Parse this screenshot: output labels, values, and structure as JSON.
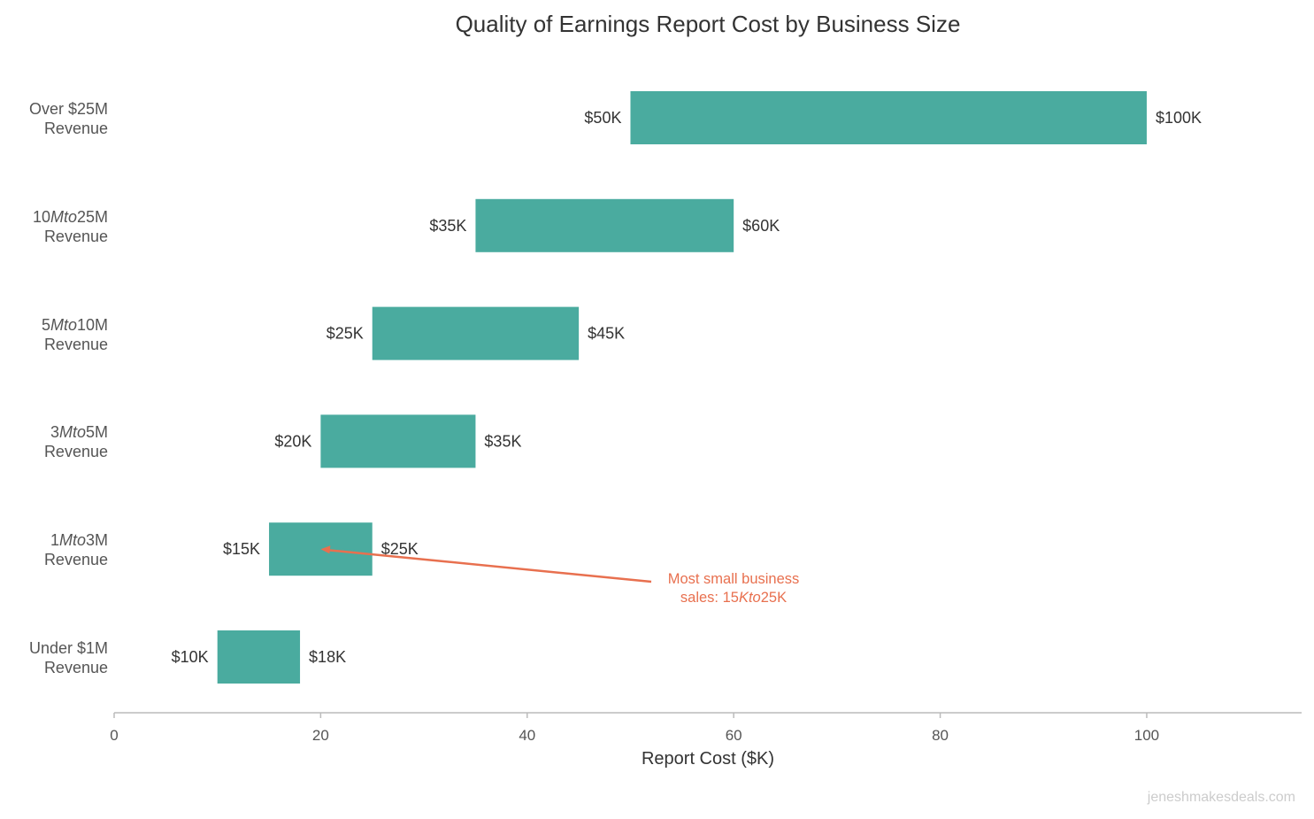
{
  "chart_data": {
    "type": "bar",
    "orientation": "horizontal-range",
    "title": "Quality of Earnings Report Cost by Business Size",
    "xlabel": "Report Cost ($K)",
    "ylabel": "",
    "xlim": [
      0,
      115
    ],
    "xticks": [
      0,
      20,
      40,
      60,
      80,
      100
    ],
    "grid": false,
    "categories": [
      {
        "label_parts": [
          "Under $1M",
          "",
          ""
        ],
        "line2": "Revenue"
      },
      {
        "label_parts": [
          "1",
          "Mto",
          "3M"
        ],
        "line2": "Revenue"
      },
      {
        "label_parts": [
          "3",
          "Mto",
          "5M"
        ],
        "line2": "Revenue"
      },
      {
        "label_parts": [
          "5",
          "Mto",
          "10M"
        ],
        "line2": "Revenue"
      },
      {
        "label_parts": [
          "10",
          "Mto",
          "25M"
        ],
        "line2": "Revenue"
      },
      {
        "label_parts": [
          "Over $25M",
          "",
          ""
        ],
        "line2": "Revenue"
      }
    ],
    "low": [
      10,
      15,
      20,
      25,
      35,
      50
    ],
    "high": [
      18,
      25,
      35,
      45,
      60,
      100
    ],
    "low_labels": [
      "$10K",
      "$15K",
      "$20K",
      "$25K",
      "$35K",
      "$50K"
    ],
    "high_labels": [
      "$18K",
      "$25K",
      "$35K",
      "$45K",
      "$60K",
      "$100K"
    ],
    "bar_color": "#4aab9f",
    "annotation": {
      "line1": "Most small business",
      "line2_parts": [
        "sales: 15",
        "Kto",
        "25K"
      ],
      "target": [
        20,
        "1Mto3M"
      ],
      "color": "#e8704f"
    }
  },
  "watermark": "jeneshmakesdeals.com"
}
